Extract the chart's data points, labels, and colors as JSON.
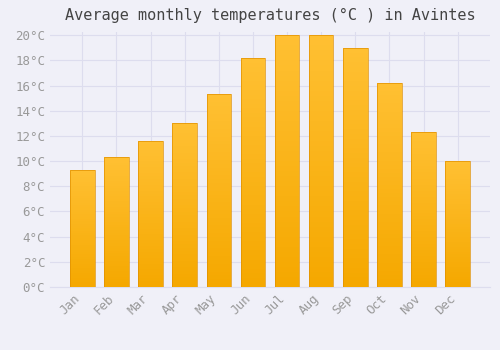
{
  "title": "Average monthly temperatures (°C ) in Avintes",
  "months": [
    "Jan",
    "Feb",
    "Mar",
    "Apr",
    "May",
    "Jun",
    "Jul",
    "Aug",
    "Sep",
    "Oct",
    "Nov",
    "Dec"
  ],
  "values": [
    9.3,
    10.3,
    11.6,
    13.0,
    15.3,
    18.2,
    20.0,
    20.0,
    19.0,
    16.2,
    12.3,
    10.0
  ],
  "bar_color_top": "#FFC033",
  "bar_color_bottom": "#F5A800",
  "bar_edge_color": "#E09000",
  "background_color": "#F0F0F8",
  "grid_color": "#DDDDEE",
  "ylim": [
    0,
    20
  ],
  "ytick_step": 2,
  "title_fontsize": 11,
  "tick_fontsize": 9,
  "font_family": "monospace",
  "title_color": "#444444",
  "tick_color": "#999999"
}
